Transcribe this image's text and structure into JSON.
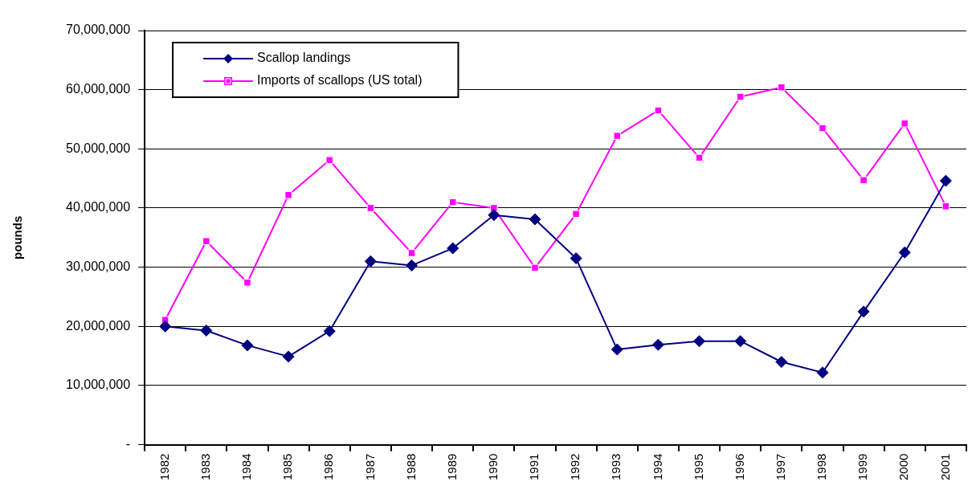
{
  "chart_data": {
    "type": "line",
    "ylabel": "pounds",
    "categories": [
      "1982",
      "1983",
      "1984",
      "1985",
      "1986",
      "1987",
      "1988",
      "1989",
      "1990",
      "1991",
      "1992",
      "1993",
      "1994",
      "1995",
      "1996",
      "1997",
      "1998",
      "1999",
      "2000",
      "2001"
    ],
    "series": [
      {
        "name": "Scallop landings",
        "color": "#000080",
        "marker": "diamond",
        "values": [
          20000000,
          19300000,
          16800000,
          14900000,
          19200000,
          31000000,
          30300000,
          33200000,
          38800000,
          38100000,
          31500000,
          16100000,
          16900000,
          17500000,
          17500000,
          14000000,
          12200000,
          22500000,
          32500000,
          44600000
        ]
      },
      {
        "name": "Imports of scallops (US total)",
        "color": "#ff00ff",
        "marker": "square",
        "values": [
          21100000,
          34400000,
          27400000,
          42200000,
          48100000,
          40000000,
          32400000,
          41000000,
          40000000,
          29900000,
          39000000,
          52200000,
          56500000,
          48500000,
          58800000,
          60400000,
          53500000,
          44700000,
          54300000,
          40300000
        ]
      }
    ],
    "ylim": [
      0,
      70000000
    ],
    "yticks": [
      {
        "value": 0,
        "label": "-"
      },
      {
        "value": 10000000,
        "label": "10,000,000"
      },
      {
        "value": 20000000,
        "label": "20,000,000"
      },
      {
        "value": 30000000,
        "label": "30,000,000"
      },
      {
        "value": 40000000,
        "label": "40,000,000"
      },
      {
        "value": 50000000,
        "label": "50,000,000"
      },
      {
        "value": 60000000,
        "label": "60,000,000"
      },
      {
        "value": 70000000,
        "label": "70,000,000"
      }
    ],
    "grid": "y",
    "legend": "top left",
    "line_style": "solid"
  }
}
